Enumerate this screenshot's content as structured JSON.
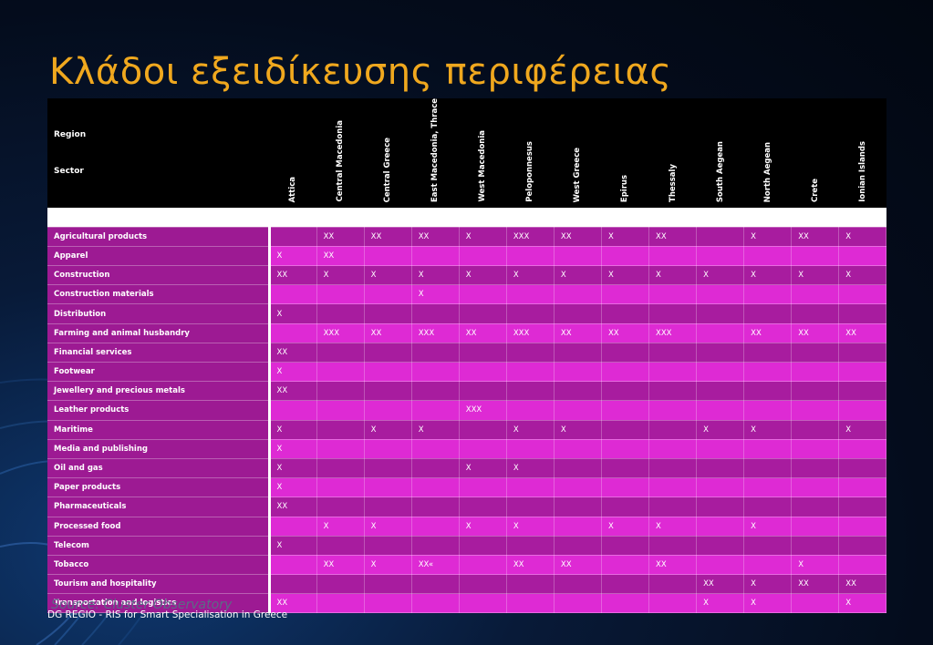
{
  "title": "Κλάδοι εξειδίκευσης περιφέρειας",
  "header": {
    "region_label": "Region",
    "sector_label": "Sector"
  },
  "regions": [
    "Attica",
    "Central Macedonia",
    "Central Greece",
    "East Macedonia, Thrace",
    "West Macedonia",
    "Peloponnesus",
    "West Greece",
    "Epirus",
    "Thessaly",
    "South Aegean",
    "North Aegean",
    "Crete",
    "Ionian Islands"
  ],
  "rows": [
    {
      "sector": "Agricultural products",
      "cells": [
        "",
        "XX",
        "XX",
        "XX",
        "X",
        "XXX",
        "XX",
        "X",
        "XX",
        "",
        "X",
        "XX",
        "X"
      ]
    },
    {
      "sector": "Apparel",
      "cells": [
        "X",
        "XX",
        "",
        "",
        "",
        "",
        "",
        "",
        "",
        "",
        "",
        "",
        ""
      ]
    },
    {
      "sector": "Construction",
      "cells": [
        "XX",
        "X",
        "X",
        "X",
        "X",
        "X",
        "X",
        "X",
        "X",
        "X",
        "X",
        "X",
        "X"
      ]
    },
    {
      "sector": "Construction materials",
      "cells": [
        "",
        "",
        "",
        "X",
        "",
        "",
        "",
        "",
        "",
        "",
        "",
        "",
        ""
      ]
    },
    {
      "sector": "Distribution",
      "cells": [
        "X",
        "",
        "",
        "",
        "",
        "",
        "",
        "",
        "",
        "",
        "",
        "",
        ""
      ]
    },
    {
      "sector": "Farming and animal husbandry",
      "cells": [
        "",
        "XXX",
        "XX",
        "XXX",
        "XX",
        "XXX",
        "XX",
        "XX",
        "XXX",
        "",
        "XX",
        "XX",
        "XX"
      ]
    },
    {
      "sector": "Financial services",
      "cells": [
        "XX",
        "",
        "",
        "",
        "",
        "",
        "",
        "",
        "",
        "",
        "",
        "",
        ""
      ]
    },
    {
      "sector": "Footwear",
      "cells": [
        "X",
        "",
        "",
        "",
        "",
        "",
        "",
        "",
        "",
        "",
        "",
        "",
        ""
      ]
    },
    {
      "sector": "Jewellery and precious metals",
      "cells": [
        "XX",
        "",
        "",
        "",
        "",
        "",
        "",
        "",
        "",
        "",
        "",
        "",
        ""
      ]
    },
    {
      "sector": "Leather products",
      "cells": [
        "",
        "",
        "",
        "",
        "XXX",
        "",
        "",
        "",
        "",
        "",
        "",
        "",
        ""
      ]
    },
    {
      "sector": "Maritime",
      "cells": [
        "X",
        "",
        "X",
        "X",
        "",
        "X",
        "X",
        "",
        "",
        "X",
        "X",
        "",
        "X"
      ]
    },
    {
      "sector": "Media and publishing",
      "cells": [
        "X",
        "",
        "",
        "",
        "",
        "",
        "",
        "",
        "",
        "",
        "",
        "",
        ""
      ]
    },
    {
      "sector": "Oil and gas",
      "cells": [
        "X",
        "",
        "",
        "",
        "X",
        "X",
        "",
        "",
        "",
        "",
        "",
        "",
        ""
      ]
    },
    {
      "sector": "Paper products",
      "cells": [
        "X",
        "",
        "",
        "",
        "",
        "",
        "",
        "",
        "",
        "",
        "",
        "",
        ""
      ]
    },
    {
      "sector": "Pharmaceuticals",
      "cells": [
        "XX",
        "",
        "",
        "",
        "",
        "",
        "",
        "",
        "",
        "",
        "",
        "",
        ""
      ]
    },
    {
      "sector": "Processed food",
      "cells": [
        "",
        "X",
        "X",
        "",
        "X",
        "X",
        "",
        "X",
        "X",
        "",
        "X",
        "",
        ""
      ]
    },
    {
      "sector": "Telecom",
      "cells": [
        "X",
        "",
        "",
        "",
        "",
        "",
        "",
        "",
        "",
        "",
        "",
        "",
        ""
      ]
    },
    {
      "sector": "Tobacco",
      "cells": [
        "",
        "XX",
        "X",
        "XX«",
        "",
        "XX",
        "XX",
        "",
        "XX",
        "",
        "",
        "X",
        ""
      ]
    },
    {
      "sector": "Tourism and hospitality",
      "cells": [
        "",
        "",
        "",
        "",
        "",
        "",
        "",
        "",
        "",
        "XX",
        "X",
        "XX",
        "XX"
      ]
    },
    {
      "sector": "Transportation and logistics",
      "cells": [
        "XX",
        "",
        "",
        "",
        "",
        "",
        "",
        "",
        "",
        "X",
        "X",
        "",
        "X"
      ]
    }
  ],
  "source": "Source: Cluster Observatory",
  "footer": "DG REGIO - RIS for Smart Specialisation in Greece"
}
